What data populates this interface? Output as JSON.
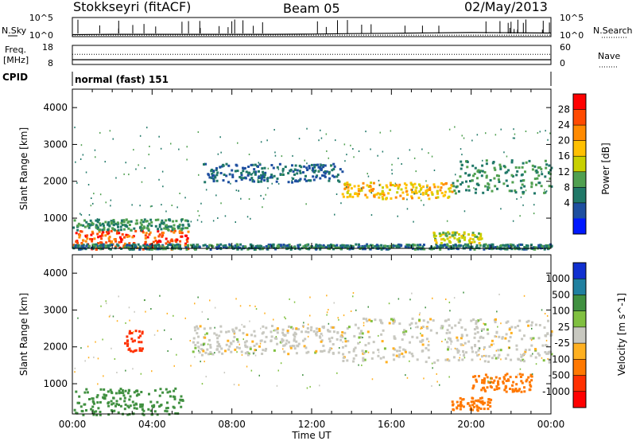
{
  "header": {
    "station": "Stokkseyri (fitACF)",
    "beam": "Beam 05",
    "date": "02/May/2013"
  },
  "strip_labels": {
    "nsky": "N.Sky",
    "nsearch": "N.Search",
    "freq_line1": "Freq.",
    "freq_line2": "[MHz]",
    "nave": "Nave",
    "cpid": "CPID",
    "mode": "normal (fast) 151"
  },
  "strip_ticks": {
    "noise_left_top": "10^5",
    "noise_left_bottom": "10^0",
    "noise_right_top": "10^5",
    "noise_right_bottom": "10^0",
    "freq_left_top": "18",
    "freq_left_bottom": "8",
    "nave_right_top": "60",
    "nave_right_bottom": "0"
  },
  "x_axis": {
    "title": "Time UT",
    "ticks": [
      "00:00",
      "04:00",
      "08:00",
      "12:00",
      "16:00",
      "20:00",
      "00:00"
    ]
  },
  "power_colorbar": {
    "label": "Power [dB]",
    "ticks": [
      "28",
      "24",
      "20",
      "16",
      "12",
      "8",
      "4"
    ],
    "colors": [
      "#ff0000",
      "#ff4a00",
      "#ff8a00",
      "#ffc000",
      "#c8d000",
      "#50a050",
      "#207868",
      "#1e4fa0",
      "#0018ff"
    ]
  },
  "velocity_colorbar": {
    "label": "Velocity [m s^-1]",
    "ticks": [
      "1000",
      "500",
      "100",
      "25",
      "-25",
      "-100",
      "-500",
      "-1000"
    ],
    "colors": [
      "#1030d0",
      "#2080a0",
      "#409040",
      "#80c040",
      "#c8c8c0",
      "#ffb020",
      "#ff7800",
      "#ff3000",
      "#ff0000"
    ]
  },
  "chart_data": [
    {
      "type": "line",
      "panel": "noise",
      "series": [
        {
          "name": "N.Sky",
          "style": "solid",
          "x_hours": [
            0,
            2,
            4,
            6,
            8,
            10,
            12,
            14,
            16,
            18,
            20,
            22,
            24
          ],
          "values_log10": [
            0.35,
            0.45,
            0.45,
            0.45,
            0.45,
            0.45,
            0.5,
            0.65,
            0.75,
            0.85,
            0.95,
            0.9,
            0.8
          ]
        },
        {
          "name": "N.Search",
          "style": "dotted",
          "x_hours": [
            0,
            24
          ],
          "values_log10": [
            0.2,
            0.2
          ]
        }
      ],
      "ylim_log10": [
        0,
        5
      ],
      "xlim_hours": [
        0,
        24
      ]
    },
    {
      "type": "line",
      "panel": "frequency",
      "series": [
        {
          "name": "Freq.",
          "style": "solid",
          "x_hours": [
            0,
            24
          ],
          "values": [
            10.5,
            10.5
          ]
        },
        {
          "name": "Nave",
          "style": "dotted",
          "x_hours": [
            0,
            24
          ],
          "values": [
            32,
            32
          ]
        }
      ],
      "ylim_freq": [
        8,
        18
      ],
      "ylim_nave": [
        0,
        60
      ],
      "xlim_hours": [
        0,
        24
      ]
    },
    {
      "type": "heatmap",
      "panel": "power",
      "xlabel": "Time UT",
      "ylabel": "Slant Range [km]",
      "xlim_hours": [
        0,
        24
      ],
      "ylim_km": [
        180,
        4500
      ],
      "yticks": [
        1000,
        2000,
        3000,
        4000
      ],
      "colorbar": "Power [dB]",
      "regions": [
        {
          "t0": 0.0,
          "t1": 5.8,
          "r0": 180,
          "r1": 700,
          "level": 28
        },
        {
          "t0": 0.0,
          "t1": 5.8,
          "r0": 700,
          "r1": 1000,
          "level": 10
        },
        {
          "t0": 13.5,
          "t1": 19.0,
          "r0": 1550,
          "r1": 2000,
          "level": 20
        },
        {
          "t0": 19.0,
          "t1": 24.0,
          "r0": 1700,
          "r1": 2600,
          "level": 10
        },
        {
          "t0": 6.5,
          "t1": 13.5,
          "r0": 2000,
          "r1": 2500,
          "level": 6
        },
        {
          "t0": 0.0,
          "t1": 24.0,
          "r0": 180,
          "r1": 320,
          "level": 8
        },
        {
          "t0": 18.0,
          "t1": 20.5,
          "r0": 350,
          "r1": 650,
          "level": 16
        }
      ]
    },
    {
      "type": "heatmap",
      "panel": "velocity",
      "xlabel": "Time UT",
      "ylabel": "Slant Range [km]",
      "xlim_hours": [
        0,
        24
      ],
      "ylim_km": [
        180,
        4500
      ],
      "yticks": [
        1000,
        2000,
        3000,
        4000
      ],
      "colorbar": "Velocity [m s^-1]",
      "regions": [
        {
          "t0": 0.0,
          "t1": 5.5,
          "r0": 180,
          "r1": 900,
          "velocity": 120
        },
        {
          "t0": 6.0,
          "t1": 13.5,
          "r0": 1800,
          "r1": 2600,
          "velocity": 0
        },
        {
          "t0": 13.5,
          "t1": 24.0,
          "r0": 1600,
          "r1": 2800,
          "velocity": 0
        },
        {
          "t0": 19.0,
          "t1": 21.0,
          "r0": 300,
          "r1": 650,
          "velocity": -400
        },
        {
          "t0": 20.0,
          "t1": 23.0,
          "r0": 800,
          "r1": 1300,
          "velocity": -450
        },
        {
          "t0": 2.5,
          "t1": 3.5,
          "r0": 1900,
          "r1": 2600,
          "velocity": -600
        }
      ]
    }
  ]
}
